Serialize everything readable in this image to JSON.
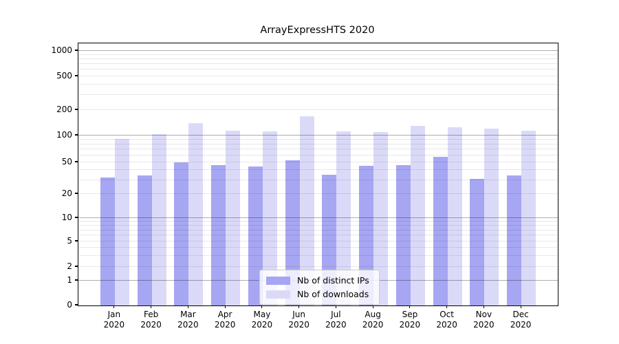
{
  "title": "ArrayExpressHTS 2020",
  "chart_data": {
    "type": "bar",
    "title": "ArrayExpressHTS 2020",
    "categories": [
      "Jan",
      "Feb",
      "Mar",
      "Apr",
      "May",
      "Jun",
      "Jul",
      "Aug",
      "Sep",
      "Oct",
      "Nov",
      "Dec"
    ],
    "category_year": "2020",
    "series": [
      {
        "name": "Nb of distinct IPs",
        "color": "#a6a6f2",
        "values": [
          32,
          34,
          50,
          46,
          44,
          53,
          35,
          45,
          46,
          58,
          31,
          34
        ]
      },
      {
        "name": "Nb of downloads",
        "color": "#dadaf8",
        "values": [
          91,
          103,
          140,
          115,
          112,
          168,
          113,
          109,
          130,
          126,
          120,
          114
        ]
      }
    ],
    "xlabel": "",
    "ylabel": "",
    "yscale": "symlog",
    "ylim": [
      0,
      1200
    ],
    "grid": true,
    "legend_position": "lower center",
    "y_axis": {
      "tick_labels": [
        "0",
        "1",
        "2",
        "5",
        "10",
        "20",
        "50",
        "100",
        "200",
        "500",
        "1000"
      ],
      "tick_values": [
        0,
        1,
        2,
        5,
        10,
        20,
        50,
        100,
        200,
        500,
        1000
      ],
      "major_grid_values": [
        1,
        10,
        100,
        1000
      ],
      "minor_grid_values": [
        2,
        3,
        4,
        5,
        6,
        7,
        8,
        9,
        20,
        30,
        40,
        50,
        60,
        70,
        80,
        90,
        200,
        300,
        400,
        500,
        600,
        700,
        800,
        900
      ],
      "scale_anchors": [
        [
          0,
          0
        ],
        [
          1,
          36
        ],
        [
          2,
          56
        ],
        [
          5,
          93
        ],
        [
          10,
          127
        ],
        [
          20,
          162
        ],
        [
          50,
          208
        ],
        [
          100,
          247
        ],
        [
          200,
          284
        ],
        [
          500,
          333
        ],
        [
          1000,
          370
        ]
      ]
    }
  },
  "legend": {
    "items": [
      {
        "label": "Nb of distinct IPs",
        "color": "#a6a6f2"
      },
      {
        "label": "Nb of downloads",
        "color": "#dadaf8"
      }
    ]
  },
  "colors": {
    "background": "#ffffff",
    "spine": "#000000",
    "bar_dark": "#a6a6f2",
    "bar_light": "#dadaf8",
    "major_grid": "rgba(0,0,0,0.32)",
    "minor_grid": "rgba(0,0,0,0.09)",
    "text": "#000000"
  }
}
